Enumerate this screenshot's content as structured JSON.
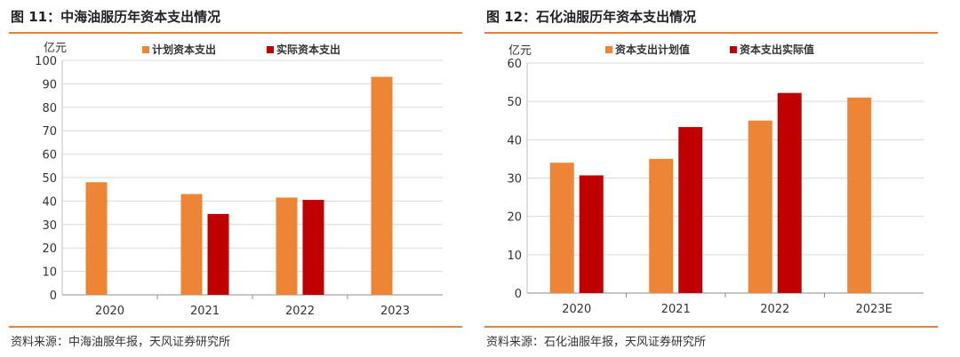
{
  "colors": {
    "accent": "#e3823b",
    "planned": "#ee8436",
    "actual": "#c00000"
  },
  "charts": [
    {
      "title": "图 11：中海油服历年资本支出情况",
      "source": "资料来源：中海油服年报，天风证券研究所"
    },
    {
      "title": "图 12：石化油服历年资本支出情况",
      "source": "资料来源：石化油服年报，天风证券研究所"
    }
  ],
  "chart_data": [
    {
      "type": "bar",
      "title": "图 11：中海油服历年资本支出情况",
      "ylabel": "亿元",
      "ylim": [
        0,
        100
      ],
      "yticks": [
        0,
        10,
        20,
        30,
        40,
        50,
        60,
        70,
        80,
        90,
        100
      ],
      "categories": [
        "2020",
        "2021",
        "2022",
        "2023"
      ],
      "series": [
        {
          "name": "计划资本支出",
          "values": [
            48,
            43,
            41.5,
            93
          ]
        },
        {
          "name": "实际资本支出",
          "values": [
            null,
            34.5,
            40.5,
            null
          ]
        }
      ],
      "legend": "top",
      "grid": true
    },
    {
      "type": "bar",
      "title": "图 12：石化油服历年资本支出情况",
      "ylabel": "亿元",
      "ylim": [
        0,
        60
      ],
      "yticks": [
        0,
        10,
        20,
        30,
        40,
        50,
        60
      ],
      "categories": [
        "2020",
        "2021",
        "2022",
        "2023E"
      ],
      "series": [
        {
          "name": "资本支出计划值",
          "values": [
            34,
            35,
            45,
            51
          ]
        },
        {
          "name": "资本支出实际值",
          "values": [
            30.7,
            43.3,
            52.2,
            null
          ]
        }
      ],
      "legend": "top",
      "grid": true
    }
  ]
}
